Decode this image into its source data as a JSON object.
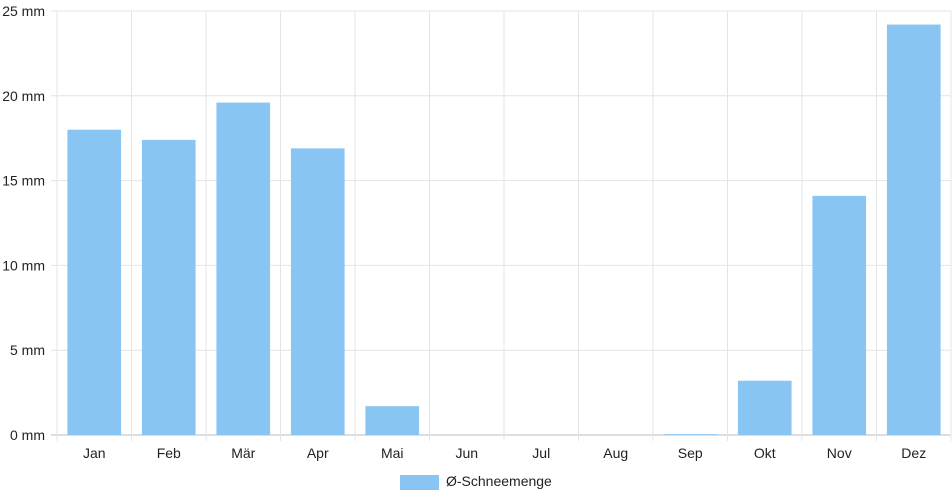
{
  "chart_data": {
    "type": "bar",
    "categories": [
      "Jan",
      "Feb",
      "Mär",
      "Apr",
      "Mai",
      "Jun",
      "Jul",
      "Aug",
      "Sep",
      "Okt",
      "Nov",
      "Dez"
    ],
    "series": [
      {
        "name": "Ø-Schneemenge",
        "values": [
          18.0,
          17.4,
          19.6,
          16.9,
          1.7,
          0,
          0,
          0,
          0.05,
          3.2,
          14.1,
          24.2
        ],
        "color": "#88c5f2"
      }
    ],
    "y_ticks": [
      "0 mm",
      "5 mm",
      "10 mm",
      "15 mm",
      "20 mm",
      "25 mm"
    ],
    "ylim": [
      0,
      25
    ],
    "grid": true,
    "legend_position": "bottom-center",
    "title": "",
    "xlabel": "",
    "ylabel": ""
  }
}
